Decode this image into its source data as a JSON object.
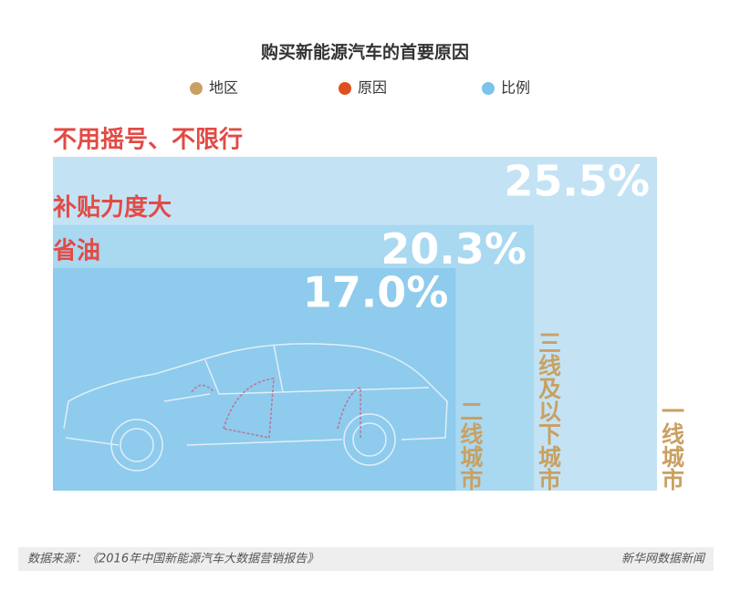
{
  "chart_data": {
    "type": "nested-area",
    "title": "购买新能源汽车的首要原因",
    "legend": [
      {
        "name": "地区",
        "color": "#c9a063"
      },
      {
        "name": "原因",
        "color": "#e0501e"
      },
      {
        "name": "比例",
        "color": "#7ac3ea"
      }
    ],
    "items": [
      {
        "region": "一线城市",
        "reason": "不用摇号、不限行",
        "value": 25.5,
        "value_label": "25.5%",
        "color": "#c3e3f5"
      },
      {
        "region": "三线及以下城市",
        "reason": "补贴力度大",
        "value": 20.3,
        "value_label": "20.3%",
        "color": "#a9d8f1"
      },
      {
        "region": "二线城市",
        "reason": "省油",
        "value": 17.0,
        "value_label": "17.0%",
        "color": "#8fcbec"
      }
    ],
    "region_color": "#c9a063",
    "reason_color": "#e34a45",
    "source": "数据来源：《2016年中国新能源汽车大数据营销报告》",
    "credit": "新华网数据新闻"
  }
}
